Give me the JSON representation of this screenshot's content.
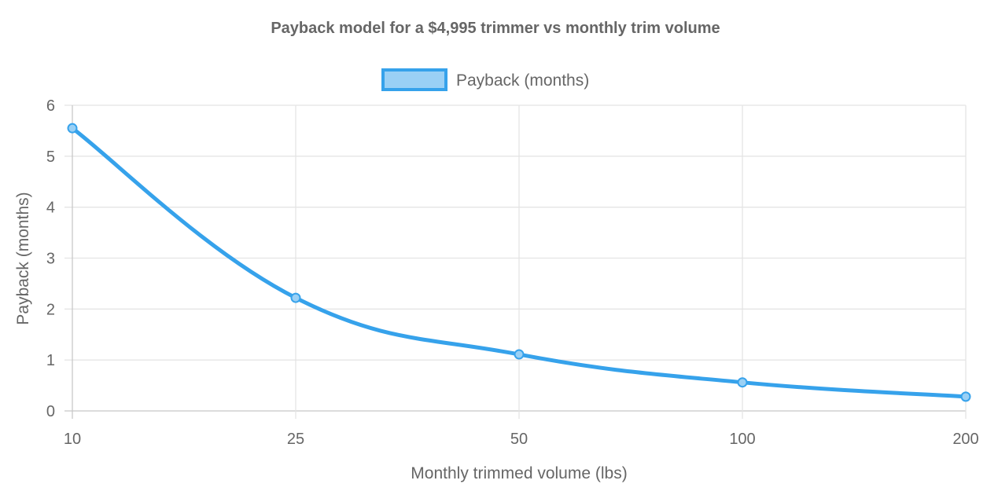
{
  "chart_data": {
    "type": "line",
    "title": "Payback model for a $4,995 trimmer vs monthly trim volume",
    "xlabel": "Monthly trimmed volume (lbs)",
    "ylabel": "Payback (months)",
    "categories": [
      "10",
      "25",
      "50",
      "100",
      "200"
    ],
    "series": [
      {
        "name": "Payback (months)",
        "values": [
          5.55,
          2.22,
          1.11,
          0.56,
          0.28
        ]
      }
    ],
    "ylim": [
      0,
      6
    ],
    "yticks": [
      "0",
      "1",
      "2",
      "3",
      "4",
      "5",
      "6"
    ],
    "grid": true,
    "legend": "top-center",
    "colors": {
      "line": "#36a2eb",
      "fill": "#9ad0f5",
      "grid": "#e4e4e4",
      "axis": "#c8c8c8"
    }
  }
}
